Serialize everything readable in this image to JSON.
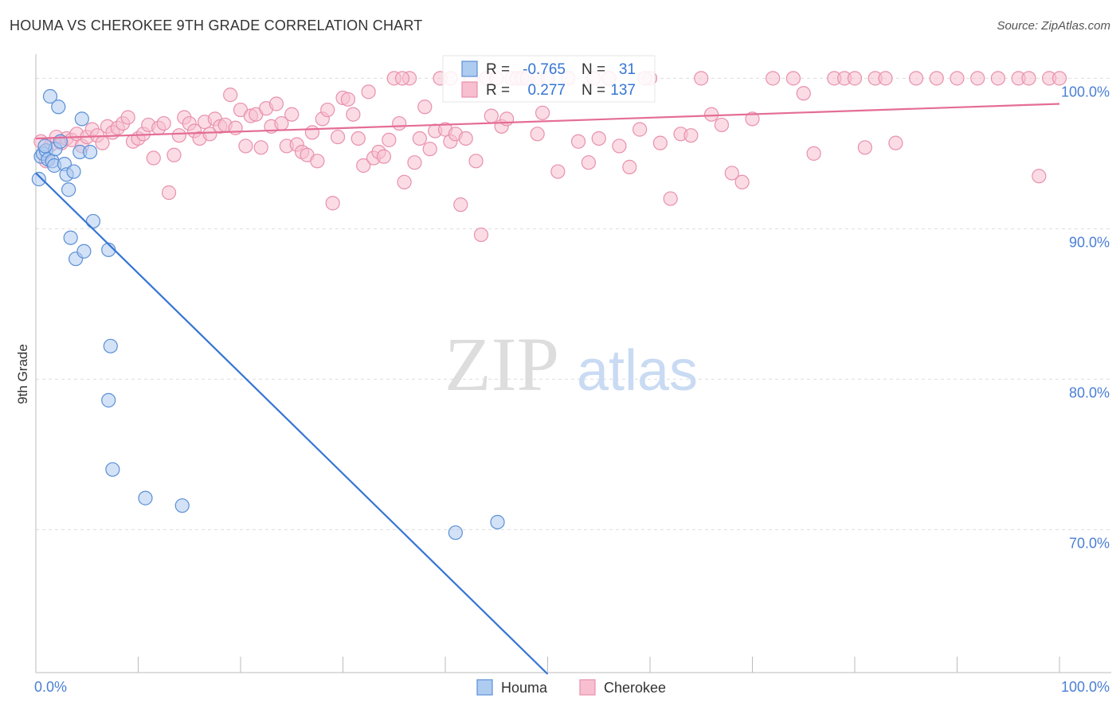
{
  "title": "HOUMA VS CHEROKEE 9TH GRADE CORRELATION CHART",
  "source": "Source: ZipAtlas.com",
  "watermark": {
    "zip": "ZIP",
    "atlas": "atlas"
  },
  "colors": {
    "houma_fill": "#aecbf0",
    "houma_stroke": "#5b8fd6",
    "houma_line": "#3575d3",
    "cherokee_fill": "#f7bfd0",
    "cherokee_stroke": "#e890ad",
    "cherokee_line": "#e46d96",
    "tick_label": "#4a7fd4",
    "grid": "#dddddd",
    "axis": "#bbbbbb"
  },
  "legend_box": {
    "rows": [
      {
        "series": "Houma",
        "r_label": "R =",
        "r_value": "-0.765",
        "n_label": "N =",
        "n_value": "31"
      },
      {
        "series": "Cherokee",
        "r_label": "R =",
        "r_value": "0.277",
        "n_label": "N =",
        "n_value": "137"
      }
    ]
  },
  "chart_data": {
    "type": "scatter",
    "title": "HOUMA VS CHEROKEE 9TH GRADE CORRELATION CHART",
    "xlabel": "",
    "ylabel": "9th Grade",
    "xlim": [
      0,
      100
    ],
    "ylim": [
      60.5,
      101.5
    ],
    "x_tick_labels": [
      {
        "value": 0,
        "label": "0.0%"
      },
      {
        "value": 100,
        "label": "100.0%"
      }
    ],
    "x_minor_ticks": [
      0,
      10,
      20,
      30,
      40,
      50,
      60,
      70,
      80,
      90,
      100
    ],
    "y_ticks": [
      {
        "value": 70,
        "label": "70.0%"
      },
      {
        "value": 80,
        "label": "80.0%"
      },
      {
        "value": 90,
        "label": "90.0%"
      },
      {
        "value": 100,
        "label": "100.0%"
      }
    ],
    "grid": true,
    "legend": [
      "Houma",
      "Cherokee"
    ],
    "legend_position": "bottom-center",
    "series": [
      {
        "name": "Houma",
        "points": [
          [
            0.5,
            94.8
          ],
          [
            0.3,
            93.3
          ],
          [
            0.7,
            95.0
          ],
          [
            1.0,
            95.2
          ],
          [
            1.2,
            94.6
          ],
          [
            1.4,
            98.8
          ],
          [
            1.6,
            94.5
          ],
          [
            1.8,
            94.2
          ],
          [
            1.9,
            95.3
          ],
          [
            2.2,
            98.1
          ],
          [
            2.4,
            95.8
          ],
          [
            2.8,
            94.3
          ],
          [
            3.0,
            93.6
          ],
          [
            3.2,
            92.6
          ],
          [
            3.4,
            89.4
          ],
          [
            3.7,
            93.8
          ],
          [
            3.9,
            88.0
          ],
          [
            4.3,
            95.1
          ],
          [
            4.5,
            97.3
          ],
          [
            4.7,
            88.5
          ],
          [
            5.3,
            95.1
          ],
          [
            5.6,
            90.5
          ],
          [
            7.1,
            88.6
          ],
          [
            7.3,
            82.2
          ],
          [
            7.1,
            78.6
          ],
          [
            7.5,
            74.0
          ],
          [
            10.7,
            72.1
          ],
          [
            14.3,
            71.6
          ],
          [
            41.0,
            69.8
          ],
          [
            45.1,
            70.5
          ],
          [
            0.9,
            95.5
          ]
        ],
        "trend": {
          "x": [
            0,
            50
          ],
          "y": [
            93.7,
            60.4
          ]
        }
      },
      {
        "name": "Cherokee",
        "points": [
          [
            0.5,
            95.8
          ],
          [
            1.0,
            94.5
          ],
          [
            1.5,
            95.6
          ],
          [
            2.0,
            96.1
          ],
          [
            2.5,
            95.7
          ],
          [
            3.0,
            96.0
          ],
          [
            3.5,
            95.9
          ],
          [
            4.0,
            96.3
          ],
          [
            4.5,
            95.5
          ],
          [
            5.0,
            96.1
          ],
          [
            5.5,
            96.6
          ],
          [
            6.0,
            96.2
          ],
          [
            6.5,
            95.7
          ],
          [
            7.0,
            96.8
          ],
          [
            7.5,
            96.4
          ],
          [
            8.0,
            96.7
          ],
          [
            8.5,
            97.0
          ],
          [
            9.0,
            97.4
          ],
          [
            9.5,
            95.8
          ],
          [
            10.0,
            96.0
          ],
          [
            10.5,
            96.3
          ],
          [
            11.0,
            96.9
          ],
          [
            11.5,
            94.7
          ],
          [
            12.0,
            96.7
          ],
          [
            12.5,
            97.0
          ],
          [
            13.0,
            92.4
          ],
          [
            13.5,
            94.9
          ],
          [
            14.0,
            96.2
          ],
          [
            14.5,
            97.4
          ],
          [
            15.0,
            97.0
          ],
          [
            15.5,
            96.5
          ],
          [
            16.0,
            96.0
          ],
          [
            16.5,
            97.1
          ],
          [
            17.0,
            96.3
          ],
          [
            17.5,
            97.3
          ],
          [
            18.0,
            96.8
          ],
          [
            18.5,
            96.9
          ],
          [
            19.0,
            98.9
          ],
          [
            19.5,
            96.7
          ],
          [
            20.0,
            97.9
          ],
          [
            20.5,
            95.5
          ],
          [
            21.0,
            97.5
          ],
          [
            21.5,
            97.6
          ],
          [
            22.0,
            95.4
          ],
          [
            22.5,
            98.0
          ],
          [
            23.0,
            96.8
          ],
          [
            23.5,
            98.3
          ],
          [
            24.0,
            97.0
          ],
          [
            24.5,
            95.5
          ],
          [
            25.0,
            97.6
          ],
          [
            25.5,
            95.6
          ],
          [
            26.0,
            95.1
          ],
          [
            26.5,
            94.9
          ],
          [
            27.0,
            96.4
          ],
          [
            27.5,
            94.5
          ],
          [
            28.0,
            97.3
          ],
          [
            28.5,
            97.9
          ],
          [
            29.0,
            91.7
          ],
          [
            29.5,
            96.1
          ],
          [
            30.0,
            98.7
          ],
          [
            30.5,
            98.6
          ],
          [
            31.0,
            97.6
          ],
          [
            31.5,
            96.0
          ],
          [
            32.0,
            94.2
          ],
          [
            32.5,
            99.1
          ],
          [
            33.0,
            94.7
          ],
          [
            33.5,
            95.1
          ],
          [
            34.0,
            94.8
          ],
          [
            34.5,
            95.9
          ],
          [
            35.0,
            100.0
          ],
          [
            35.5,
            97.0
          ],
          [
            36.0,
            93.1
          ],
          [
            36.5,
            100.0
          ],
          [
            37.0,
            94.4
          ],
          [
            37.5,
            96.0
          ],
          [
            38.0,
            98.1
          ],
          [
            38.5,
            95.3
          ],
          [
            39.0,
            96.5
          ],
          [
            39.5,
            100.0
          ],
          [
            40.0,
            96.6
          ],
          [
            40.5,
            95.8
          ],
          [
            41.0,
            96.3
          ],
          [
            41.5,
            91.6
          ],
          [
            42.0,
            96.0
          ],
          [
            42.5,
            100.0
          ],
          [
            43.0,
            94.5
          ],
          [
            43.5,
            89.6
          ],
          [
            44.0,
            100.0
          ],
          [
            44.5,
            97.5
          ],
          [
            45.0,
            100.0
          ],
          [
            45.5,
            96.8
          ],
          [
            46.0,
            97.3
          ],
          [
            46.5,
            100.0
          ],
          [
            47.0,
            100.0
          ],
          [
            47.5,
            100.0
          ],
          [
            48.0,
            100.0
          ],
          [
            49.0,
            100.0
          ],
          [
            49.5,
            97.7
          ],
          [
            50.0,
            100.0
          ],
          [
            51.0,
            93.8
          ],
          [
            52.0,
            100.0
          ],
          [
            53.0,
            95.8
          ],
          [
            54.0,
            94.4
          ],
          [
            55.0,
            96.0
          ],
          [
            56.0,
            100.0
          ],
          [
            57.0,
            95.5
          ],
          [
            58.0,
            94.1
          ],
          [
            59.0,
            96.6
          ],
          [
            60.0,
            100.0
          ],
          [
            61.0,
            95.7
          ],
          [
            62.0,
            92.0
          ],
          [
            63.0,
            96.3
          ],
          [
            64.0,
            96.2
          ],
          [
            65.0,
            100.0
          ],
          [
            66.0,
            97.6
          ],
          [
            67.0,
            96.9
          ],
          [
            68.0,
            93.7
          ],
          [
            69.0,
            93.1
          ],
          [
            70.0,
            97.3
          ],
          [
            72.0,
            100.0
          ],
          [
            74.0,
            100.0
          ],
          [
            75.0,
            99.0
          ],
          [
            76.0,
            95.0
          ],
          [
            78.0,
            100.0
          ],
          [
            79.0,
            100.0
          ],
          [
            80.0,
            100.0
          ],
          [
            81.0,
            95.4
          ],
          [
            82.0,
            100.0
          ],
          [
            83.0,
            100.0
          ],
          [
            84.0,
            95.7
          ],
          [
            86.0,
            100.0
          ],
          [
            88.0,
            100.0
          ],
          [
            90.0,
            100.0
          ],
          [
            92.0,
            100.0
          ],
          [
            94.0,
            100.0
          ],
          [
            96.0,
            100.0
          ],
          [
            97.0,
            100.0
          ],
          [
            98.0,
            93.5
          ],
          [
            99.0,
            100.0
          ],
          [
            100.0,
            100.0
          ],
          [
            54.5,
            100.0
          ],
          [
            59.5,
            100.0
          ],
          [
            40.5,
            100.0
          ],
          [
            35.8,
            100.0
          ],
          [
            49.0,
            96.3
          ]
        ],
        "trend": {
          "x": [
            0,
            100
          ],
          "y": [
            96.0,
            98.3
          ]
        }
      }
    ]
  }
}
